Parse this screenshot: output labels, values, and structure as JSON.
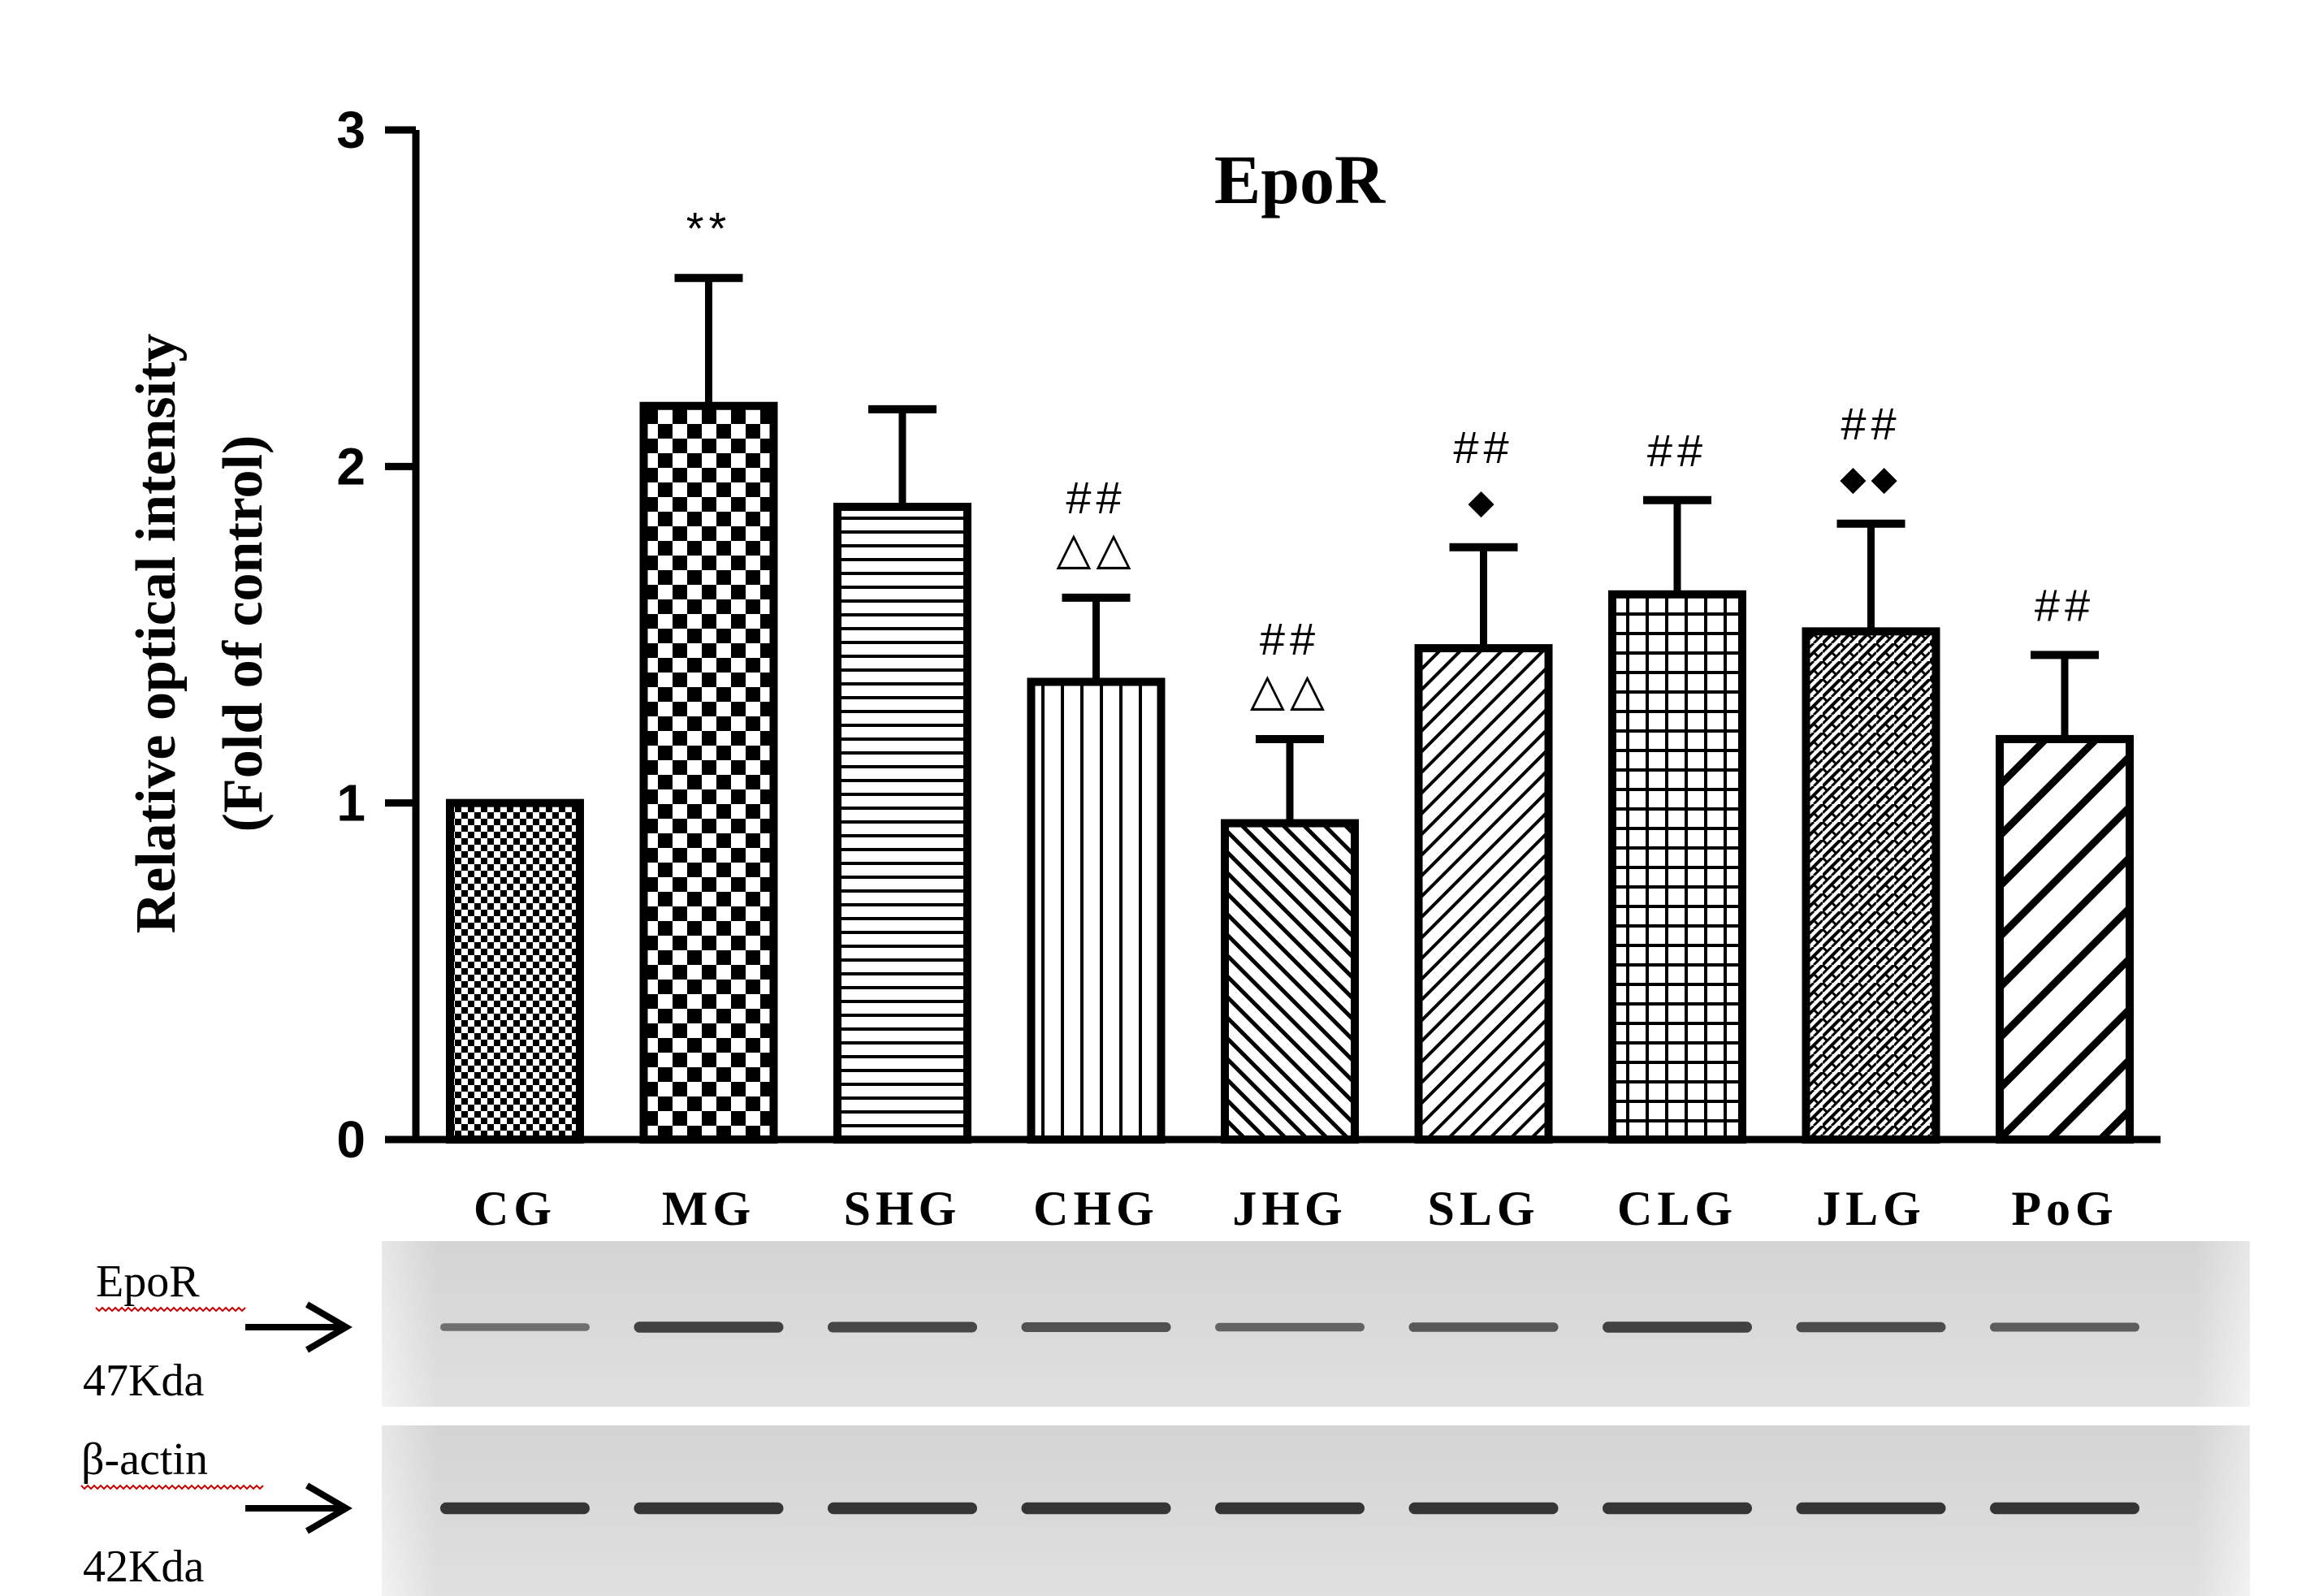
{
  "chart_data": {
    "type": "bar",
    "title": "EpoR",
    "ylabel_line1": "Relative optical intensity",
    "ylabel_line2": "(Fold of control)",
    "xlabel": "",
    "ylim": [
      0,
      3
    ],
    "yticks": [
      0,
      1,
      2,
      3
    ],
    "grid": false,
    "legend": "none",
    "categories": [
      "CG",
      "MG",
      "SHG",
      "CHG",
      "JHG",
      "SLG",
      "CLG",
      "JLG",
      "PoG"
    ],
    "values": [
      1.0,
      2.18,
      1.88,
      1.36,
      0.94,
      1.46,
      1.62,
      1.51,
      1.19
    ],
    "errors": [
      0,
      0.38,
      0.29,
      0.25,
      0.25,
      0.3,
      0.28,
      0.32,
      0.25
    ],
    "patterns": [
      "fine-checker",
      "large-checker",
      "horizontal-lines",
      "vertical-lines",
      "diagonal-up-fine",
      "diagonal-down-fine",
      "grid",
      "zigzag",
      "diagonal-down-wide"
    ],
    "annotations": [
      {
        "category": "MG",
        "lines": [
          "**"
        ]
      },
      {
        "category": "CHG",
        "lines": [
          "##",
          "△△"
        ]
      },
      {
        "category": "JHG",
        "lines": [
          "##",
          "△△"
        ]
      },
      {
        "category": "SLG",
        "lines": [
          "##",
          "◆"
        ]
      },
      {
        "category": "CLG",
        "lines": [
          "##"
        ]
      },
      {
        "category": "JLG",
        "lines": [
          "##",
          "◆◆"
        ]
      },
      {
        "category": "PoG",
        "lines": [
          "##"
        ]
      }
    ],
    "colors": {
      "ink": "#000000",
      "fill": "#ffffff",
      "blot_bg": "#d6d6d6",
      "band": "#333333"
    }
  },
  "blots": [
    {
      "label": "EpoR",
      "size": "47Kda",
      "band_intensity": [
        0.35,
        0.75,
        0.7,
        0.6,
        0.45,
        0.55,
        0.75,
        0.65,
        0.5
      ]
    },
    {
      "label": "β-actin",
      "size": "42Kda",
      "band_intensity": [
        0.85,
        0.85,
        0.85,
        0.85,
        0.85,
        0.85,
        0.85,
        0.85,
        0.85
      ]
    }
  ]
}
